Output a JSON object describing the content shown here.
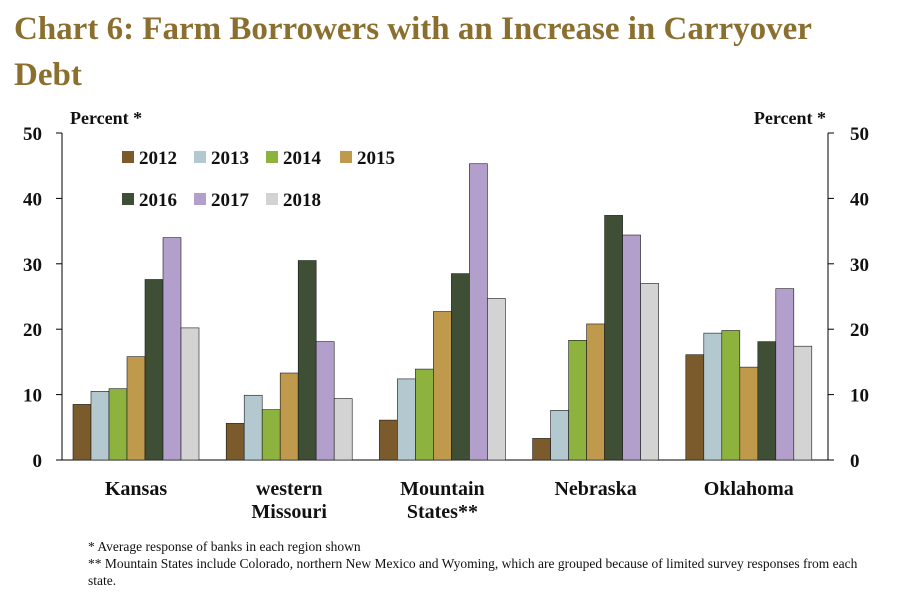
{
  "title": "Chart 6: Farm Borrowers with an Increase in Carryover Debt",
  "chart_data": {
    "type": "bar",
    "title": "Chart 6: Farm Borrowers with an Increase in Carryover Debt",
    "ylabel_left": "Percent *",
    "ylabel_right": "Percent *",
    "ylim": [
      0,
      50
    ],
    "yticks": [
      0,
      10,
      20,
      30,
      40,
      50
    ],
    "categories": [
      "Kansas",
      "western Missouri",
      "Mountain States**",
      "Nebraska",
      "Oklahoma"
    ],
    "category_lines": [
      [
        "Kansas"
      ],
      [
        "western",
        "Missouri"
      ],
      [
        "Mountain",
        "States**"
      ],
      [
        "Nebraska"
      ],
      [
        "Oklahoma"
      ]
    ],
    "legend_placement": "top-left",
    "grid": false,
    "series": [
      {
        "name": "2012",
        "color": "#7b5a2c",
        "values": [
          8.5,
          5.6,
          6.1,
          3.3,
          16.1
        ]
      },
      {
        "name": "2013",
        "color": "#b4c8d0",
        "values": [
          10.5,
          9.9,
          12.4,
          7.6,
          19.4
        ]
      },
      {
        "name": "2014",
        "color": "#8db33e",
        "values": [
          10.9,
          7.7,
          13.9,
          18.3,
          19.8
        ]
      },
      {
        "name": "2015",
        "color": "#c09a4c",
        "values": [
          15.8,
          13.3,
          22.7,
          20.8,
          14.2
        ]
      },
      {
        "name": "2016",
        "color": "#3f4f36",
        "values": [
          27.6,
          30.5,
          28.5,
          37.4,
          18.1
        ]
      },
      {
        "name": "2017",
        "color": "#b39fcb",
        "values": [
          34.0,
          18.1,
          45.3,
          34.4,
          26.2
        ]
      },
      {
        "name": "2018",
        "color": "#d3d3d3",
        "values": [
          20.2,
          9.4,
          24.7,
          27.0,
          17.4
        ]
      }
    ]
  },
  "footnotes": [
    "* Average response of banks in each region shown",
    "** Mountain States include Colorado, northern New Mexico and Wyoming, which are grouped because of limited survey responses from each state."
  ]
}
